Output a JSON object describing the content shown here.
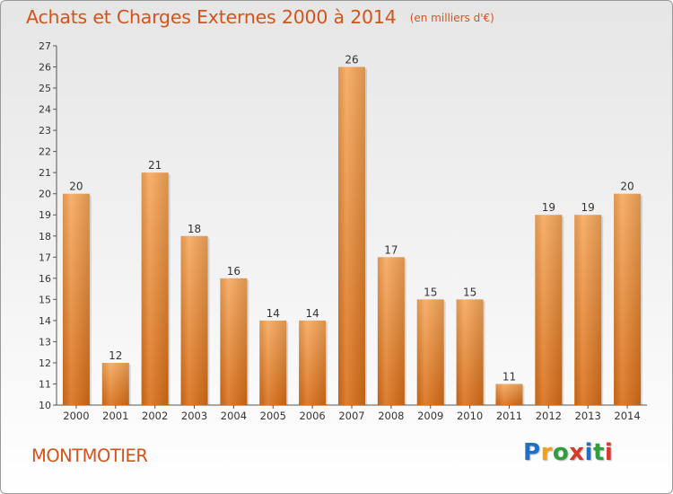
{
  "chart_data": {
    "type": "bar",
    "title": "Achats et Charges Externes 2000 à 2014",
    "unit": "(en milliers d'€)",
    "categories": [
      "2000",
      "2001",
      "2002",
      "2003",
      "2004",
      "2005",
      "2006",
      "2007",
      "2008",
      "2009",
      "2010",
      "2011",
      "2012",
      "2013",
      "2014"
    ],
    "values": [
      20,
      12,
      21,
      18,
      16,
      14,
      14,
      26,
      17,
      15,
      15,
      11,
      19,
      19,
      20
    ],
    "value_labels": [
      "20",
      "12",
      "21",
      "18",
      "16",
      "14",
      "14",
      "26",
      "17",
      "15",
      "15",
      "11",
      "19",
      "19",
      "20"
    ],
    "ylim": [
      10,
      27
    ],
    "yticks": [
      "10",
      "11",
      "12",
      "13",
      "14",
      "15",
      "16",
      "17",
      "18",
      "19",
      "20",
      "21",
      "22",
      "23",
      "24",
      "25",
      "26",
      "27"
    ],
    "grid": false,
    "bar_color": "#f08c2e",
    "text_color": "#d2541b"
  },
  "commune": "MONTMOTIER",
  "logo": {
    "letters": [
      "P",
      "r",
      "o",
      "x",
      "i",
      "t",
      "i"
    ],
    "colors": [
      "#1e6fc8",
      "#f0a020",
      "#2e9e3e",
      "#d83a2a",
      "#1e6fc8",
      "#2e9e3e",
      "#d83a2a"
    ]
  }
}
